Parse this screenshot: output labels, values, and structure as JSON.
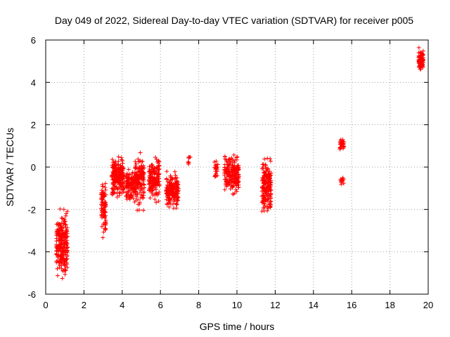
{
  "chart_data": {
    "type": "scatter",
    "title": "Day 049 of 2022, Sidereal Day-to-day VTEC variation (SDTVAR) for receiver p005",
    "xlabel": "GPS time / hours",
    "ylabel": "SDTVAR / TECUs",
    "xlim": [
      0,
      20
    ],
    "ylim": [
      -6,
      6
    ],
    "xticks": [
      "0",
      "2",
      "4",
      "6",
      "8",
      "10",
      "12",
      "14",
      "16",
      "18",
      "20"
    ],
    "yticks": [
      "-6",
      "-4",
      "-2",
      "0",
      "2",
      "4",
      "6"
    ],
    "grid": true,
    "marker": "+",
    "color": "#ff0000",
    "clusters": [
      {
        "x": [
          0.55,
          1.15
        ],
        "y": [
          -5.6,
          -1.6
        ],
        "n": 240
      },
      {
        "x": [
          2.9,
          3.15
        ],
        "y": [
          -3.5,
          -0.3
        ],
        "n": 90
      },
      {
        "x": [
          3.45,
          4.1
        ],
        "y": [
          -1.7,
          0.8
        ],
        "n": 200
      },
      {
        "x": [
          4.2,
          4.65
        ],
        "y": [
          -1.8,
          0.1
        ],
        "n": 110
      },
      {
        "x": [
          4.65,
          5.15
        ],
        "y": [
          -2.3,
          1.0
        ],
        "n": 160
      },
      {
        "x": [
          5.4,
          5.95
        ],
        "y": [
          -1.8,
          0.7
        ],
        "n": 150
      },
      {
        "x": [
          6.3,
          6.95
        ],
        "y": [
          -2.1,
          -0.1
        ],
        "n": 170
      },
      {
        "x": [
          7.45,
          7.6
        ],
        "y": [
          -0.1,
          0.7
        ],
        "n": 8
      },
      {
        "x": [
          8.8,
          9.0
        ],
        "y": [
          -0.7,
          0.5
        ],
        "n": 25
      },
      {
        "x": [
          9.35,
          9.75
        ],
        "y": [
          -1.4,
          0.8
        ],
        "n": 90
      },
      {
        "x": [
          9.75,
          10.1
        ],
        "y": [
          -1.6,
          0.9
        ],
        "n": 110
      },
      {
        "x": [
          11.3,
          11.8
        ],
        "y": [
          -2.5,
          0.7
        ],
        "n": 180
      },
      {
        "x": [
          15.38,
          15.6
        ],
        "y": [
          0.7,
          1.4
        ],
        "n": 30
      },
      {
        "x": [
          15.4,
          15.6
        ],
        "y": [
          -0.9,
          -0.3
        ],
        "n": 12
      },
      {
        "x": [
          19.5,
          19.75
        ],
        "y": [
          4.5,
          5.7
        ],
        "n": 90
      }
    ]
  }
}
